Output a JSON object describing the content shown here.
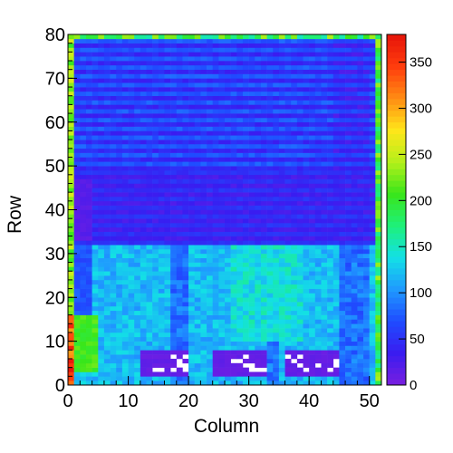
{
  "chart_data": {
    "type": "heatmap",
    "title": "",
    "xlabel": "Column",
    "ylabel": "Row",
    "xlim": [
      0,
      52
    ],
    "ylim": [
      0,
      80
    ],
    "x_ticks": [
      "0",
      "10",
      "20",
      "30",
      "40",
      "50"
    ],
    "y_ticks": [
      "0",
      "10",
      "20",
      "30",
      "40",
      "50",
      "60",
      "70",
      "80"
    ],
    "colorbar": {
      "range": [
        0,
        380
      ],
      "ticks": [
        "0",
        "50",
        "100",
        "150",
        "200",
        "250",
        "300",
        "350"
      ],
      "palette": [
        "#7a1fe0",
        "#3a1cf0",
        "#1f4cff",
        "#1f99ff",
        "#13e0e6",
        "#1ef07a",
        "#39e61a",
        "#b4f01a",
        "#ffe61a",
        "#ff8c13",
        "#ff3c0d",
        "#e6140a"
      ]
    },
    "grid": false,
    "regions": [
      {
        "cols": [
          0,
          52
        ],
        "rows": [
          49,
          80
        ],
        "typical_value": "40-80, alternating horizontal stripes"
      },
      {
        "cols": [
          0,
          52
        ],
        "rows": [
          32,
          49
        ],
        "typical_value": "20-60"
      },
      {
        "cols": [
          0,
          4
        ],
        "rows": [
          33,
          46
        ],
        "typical_value": "10-25"
      },
      {
        "cols": [
          0,
          52
        ],
        "rows": [
          0,
          32
        ],
        "typical_value": "90-160"
      },
      {
        "cols": [
          1,
          5
        ],
        "rows": [
          3,
          16
        ],
        "typical_value": "190-230"
      },
      {
        "cols": [
          12,
          20
        ],
        "rows": [
          2,
          8
        ],
        "typical_value": "5-20 with empty cells"
      },
      {
        "cols": [
          24,
          33
        ],
        "rows": [
          2,
          8
        ],
        "typical_value": "5-20 with empty cells"
      },
      {
        "cols": [
          36,
          45
        ],
        "rows": [
          2,
          8
        ],
        "typical_value": "5-20 with empty cells"
      },
      {
        "cols": [
          0,
          52
        ],
        "rows": [
          0,
          1
        ],
        "typical_value": "edge band"
      },
      {
        "cols": [
          0,
          1
        ],
        "rows": [
          0,
          80
        ],
        "typical_value": "edge band, up to ~370"
      },
      {
        "cols": [
          51,
          52
        ],
        "rows": [
          0,
          80
        ],
        "typical_value": "edge band"
      }
    ]
  }
}
